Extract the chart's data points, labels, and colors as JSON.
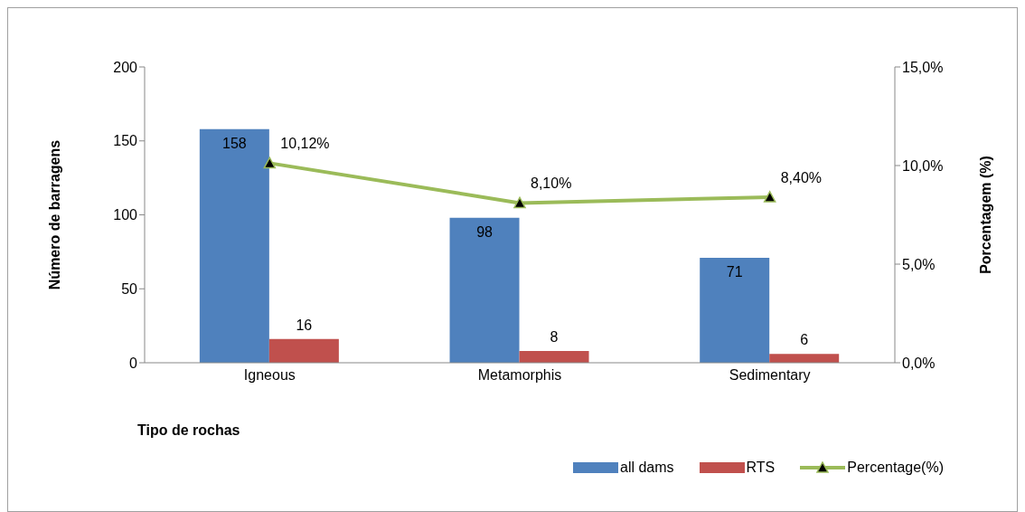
{
  "chart_data": {
    "type": "bar",
    "xlabel": "Tipo de rochas",
    "ylabel": "Número de barragens",
    "y2label": "Porcentagem (%)",
    "categories": [
      "Igneous",
      "Metamorphis",
      "Sedimentary"
    ],
    "series": [
      {
        "name": "all dams",
        "color": "#4f81bd",
        "values": [
          158,
          98,
          71
        ]
      },
      {
        "name": "RTS",
        "color": "#c0504d",
        "values": [
          16,
          8,
          6
        ]
      },
      {
        "name": "Percentage(%)",
        "type": "line",
        "axis": "y2",
        "color": "#9bbb59",
        "marker": "triangle",
        "values": [
          10.12,
          8.1,
          8.4
        ],
        "value_labels": [
          "10,12%",
          "8,10%",
          "8,40%"
        ]
      }
    ],
    "ylim": [
      0,
      200
    ],
    "yticks": [
      0,
      50,
      100,
      150,
      200
    ],
    "y2lim": [
      0,
      15
    ],
    "y2ticks": [
      {
        "value": 0,
        "label": "0,0%"
      },
      {
        "value": 5,
        "label": "5,0%"
      },
      {
        "value": 10,
        "label": "10,0%"
      },
      {
        "value": 15,
        "label": "15,0%"
      }
    ],
    "data_labels": true,
    "grid": false,
    "legend": "bottom right"
  }
}
